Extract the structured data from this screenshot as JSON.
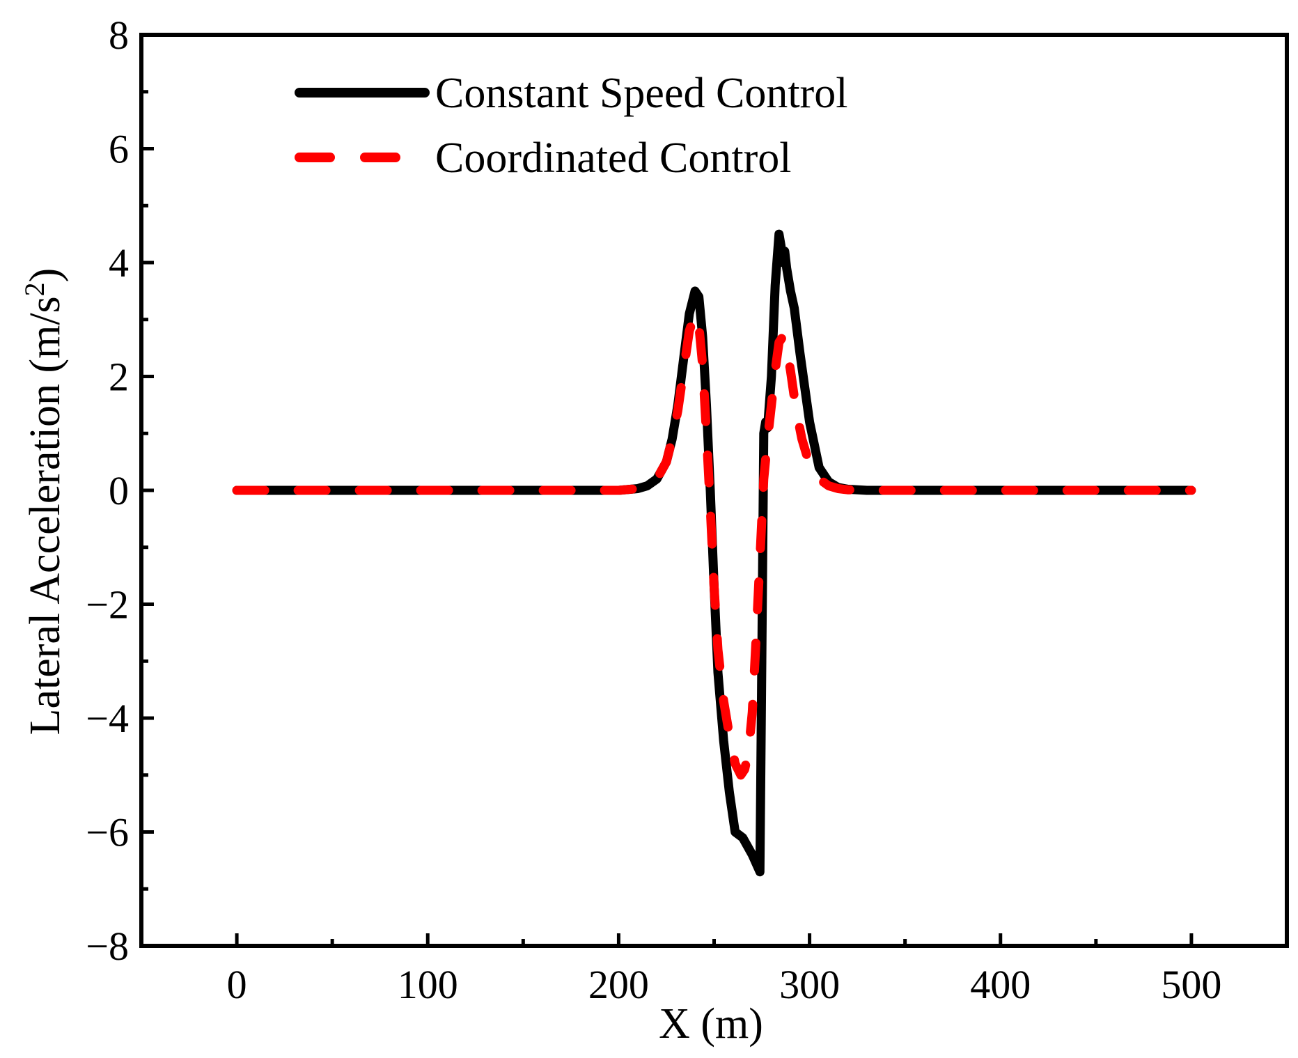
{
  "chart_data": {
    "type": "line",
    "title": "",
    "xlabel": "X (m)",
    "ylabel_main": "Lateral Acceleration (m/s",
    "ylabel_sup": "2",
    "ylabel_close": ")",
    "xlim": [
      -50,
      550
    ],
    "ylim": [
      -8,
      8
    ],
    "xticks": [
      0,
      100,
      200,
      300,
      400,
      500
    ],
    "xtick_labels": [
      "0",
      "100",
      "200",
      "300",
      "400",
      "500"
    ],
    "yticks": [
      -8,
      -6,
      -4,
      -2,
      0,
      2,
      4,
      6,
      8
    ],
    "ytick_labels": [
      "−8",
      "−6",
      "−4",
      "−2",
      "0",
      "2",
      "4",
      "6",
      "8"
    ],
    "x_minor_step": 50,
    "y_minor_step": 1,
    "grid": false,
    "legend_position": "top-left",
    "series": [
      {
        "name": "Constant Speed Control",
        "color": "#000000",
        "style": "solid",
        "x": [
          0,
          50,
          100,
          150,
          200,
          210,
          215,
          220,
          225,
          228,
          231,
          234,
          237,
          240,
          242,
          244,
          246,
          248,
          250,
          252,
          255,
          258,
          261,
          265,
          270,
          274,
          275,
          276,
          277,
          278,
          280,
          282,
          284,
          285,
          286,
          287,
          288,
          290,
          292,
          295,
          300,
          305,
          310,
          315,
          320,
          330,
          350,
          400,
          450,
          500
        ],
        "y": [
          0,
          0,
          0,
          0,
          0,
          0.03,
          0.08,
          0.2,
          0.5,
          0.9,
          1.5,
          2.3,
          3.1,
          3.5,
          3.4,
          2.7,
          1.5,
          0,
          -1.7,
          -3.2,
          -4.4,
          -5.3,
          -6.0,
          -6.1,
          -6.4,
          -6.7,
          -3.0,
          1.0,
          1.2,
          1.1,
          2.0,
          3.6,
          4.5,
          4.3,
          4.0,
          4.2,
          3.9,
          3.5,
          3.2,
          2.4,
          1.2,
          0.4,
          0.15,
          0.05,
          0.02,
          0,
          0,
          0,
          0,
          0
        ]
      },
      {
        "name": "Coordinated Control",
        "color": "#ff0000",
        "style": "dashed",
        "x": [
          0,
          50,
          100,
          150,
          200,
          210,
          215,
          220,
          225,
          228,
          231,
          234,
          237,
          240,
          242,
          244,
          246,
          248,
          250,
          252,
          255,
          258,
          261,
          264,
          266,
          268,
          270,
          272,
          274,
          276,
          278,
          280,
          282,
          284,
          286,
          288,
          290,
          293,
          296,
          300,
          305,
          310,
          315,
          320,
          330,
          350,
          400,
          450,
          500
        ],
        "y": [
          0,
          0,
          0,
          0,
          0,
          0.03,
          0.08,
          0.2,
          0.5,
          0.9,
          1.4,
          2.1,
          2.8,
          3.1,
          2.9,
          2.2,
          1.0,
          -0.3,
          -1.7,
          -2.8,
          -3.7,
          -4.3,
          -4.8,
          -5.0,
          -4.9,
          -4.6,
          -3.9,
          -2.6,
          -1.2,
          0.2,
          0.9,
          1.5,
          2.1,
          2.6,
          2.7,
          2.5,
          2.1,
          1.4,
          0.9,
          0.45,
          0.2,
          0.08,
          0.03,
          0.01,
          0,
          0,
          0,
          0,
          0
        ]
      }
    ]
  }
}
